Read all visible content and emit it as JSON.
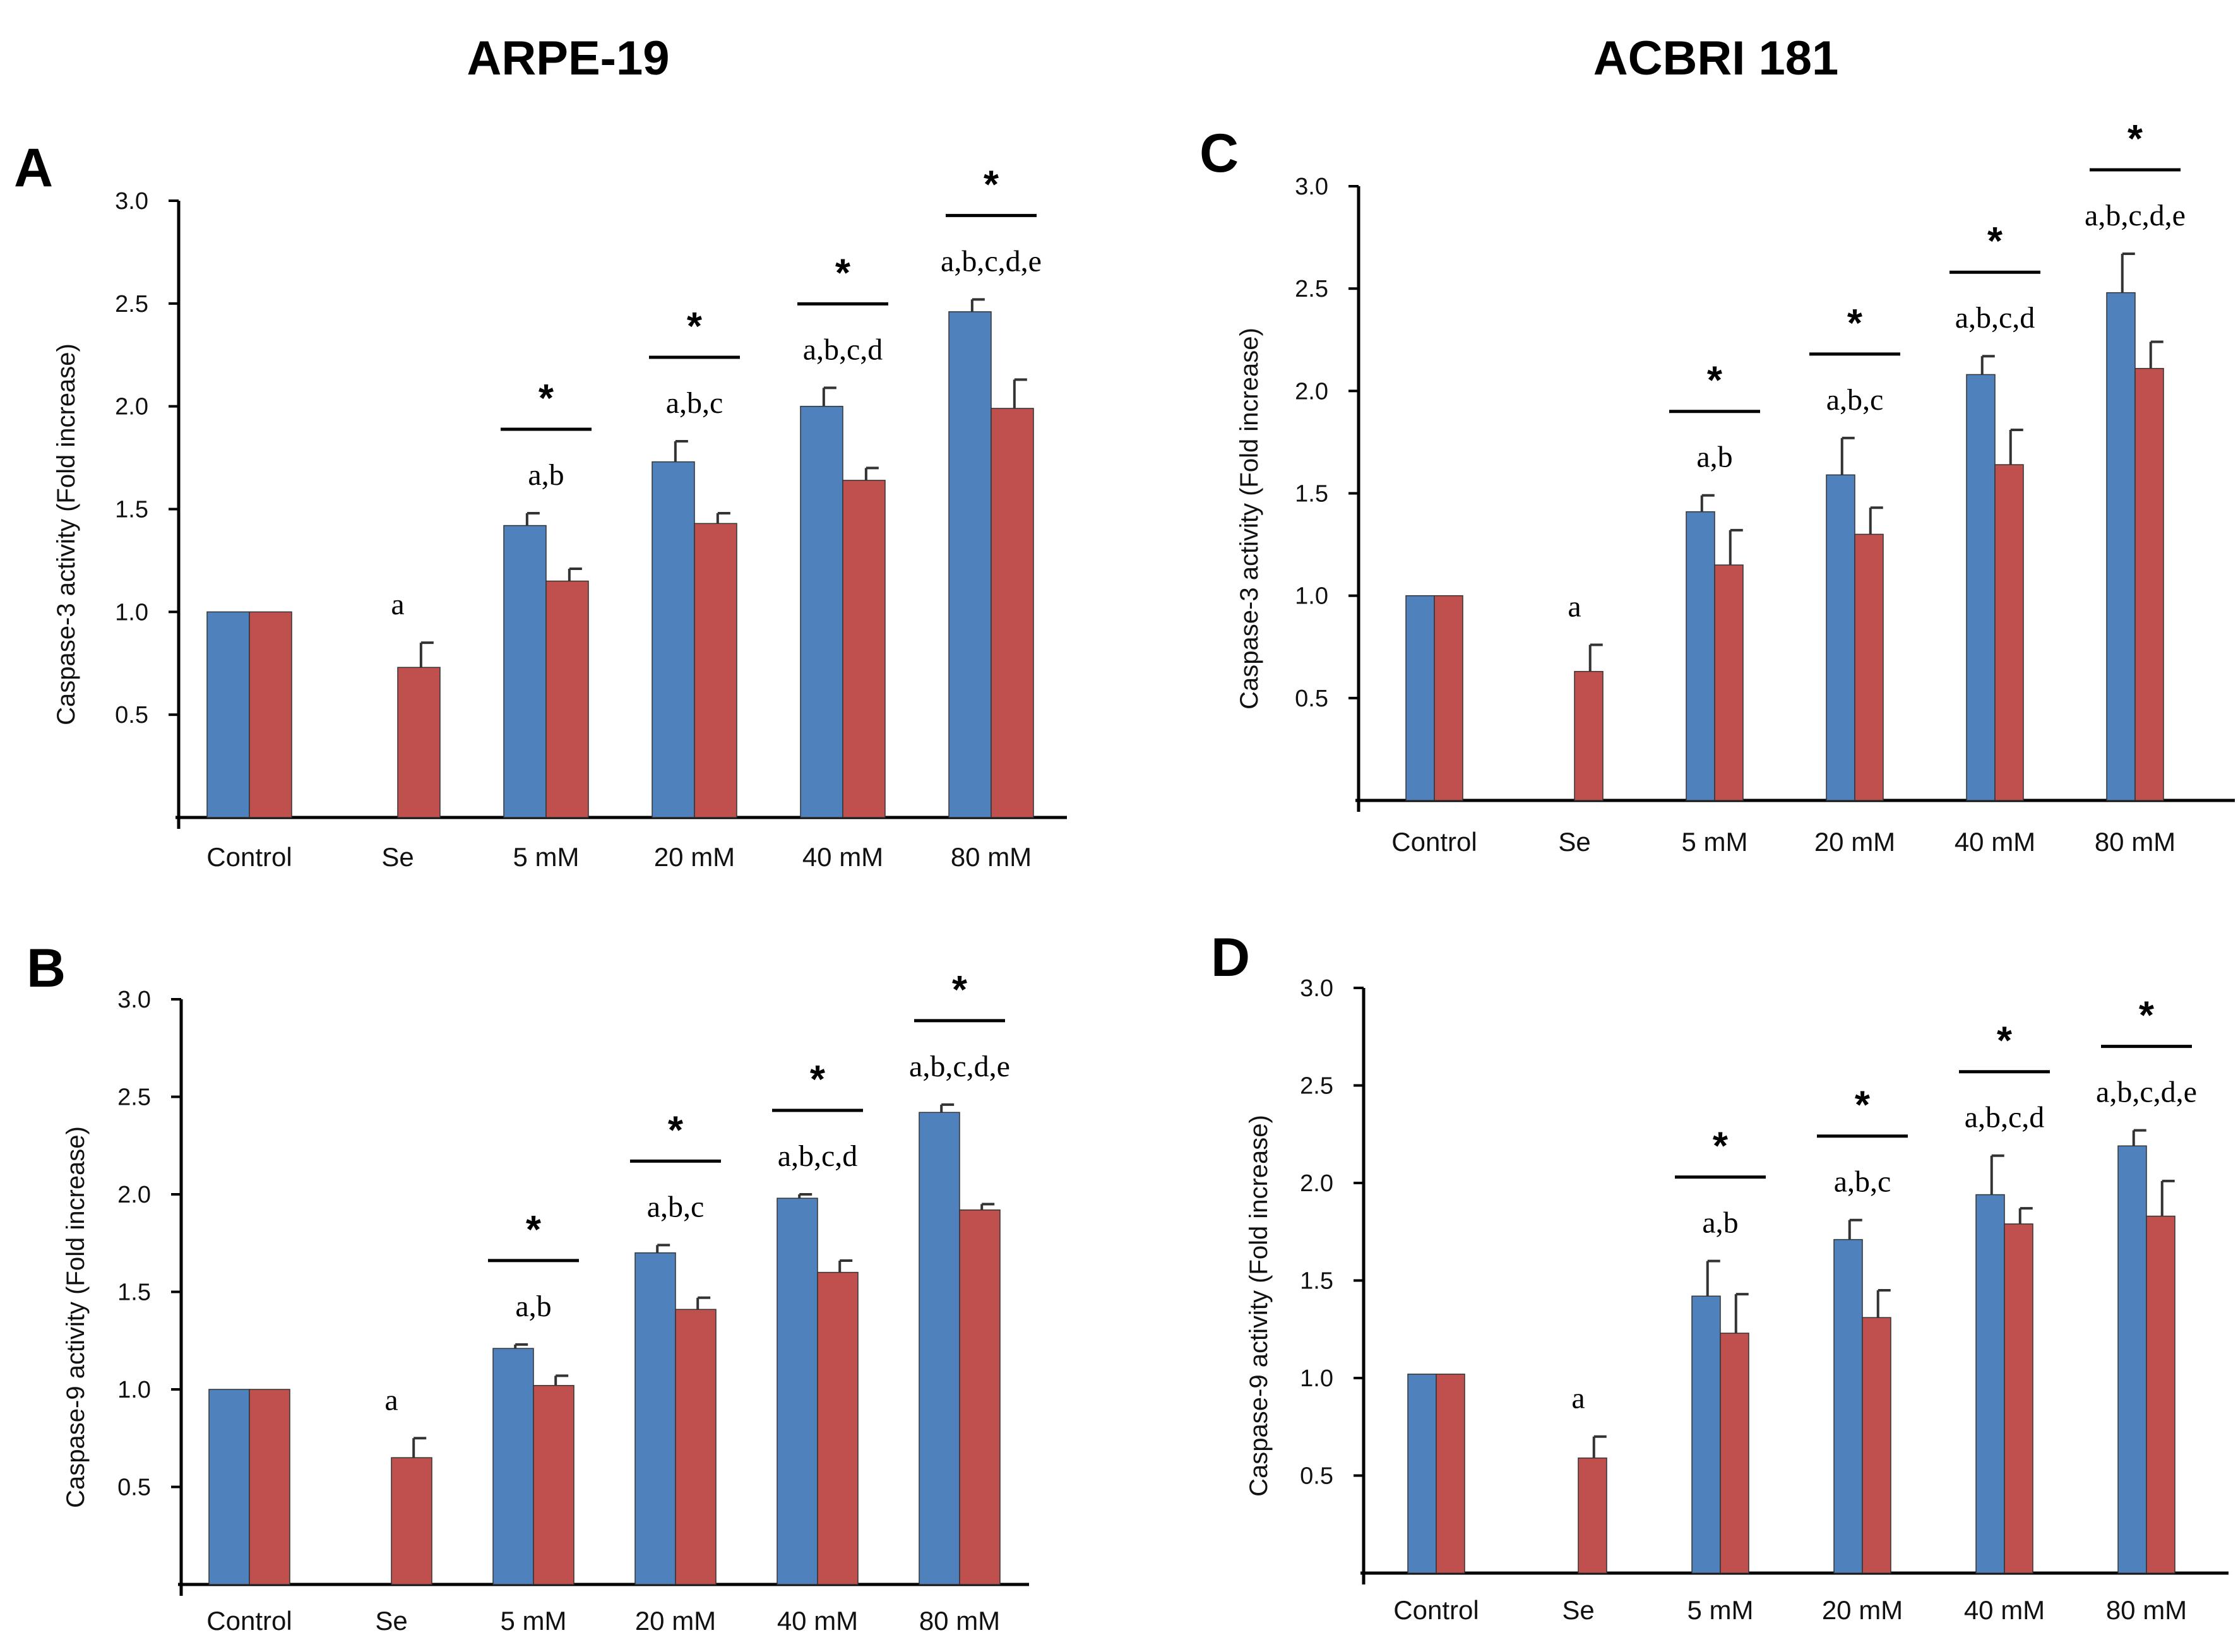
{
  "figure": {
    "col_titles": [
      "ARPE-19",
      "ACBRI 181"
    ],
    "colors": {
      "blue": "#4f81bd",
      "red": "#c0504d",
      "axis": "#000000"
    }
  },
  "chart_data": [
    {
      "type": "bar",
      "panel": "A",
      "ylabel": "Caspase-3 activity (Fold increase)",
      "ylim": [
        0,
        3.0
      ],
      "yticks": [
        "0.5",
        "1.0",
        "1.5",
        "2.0",
        "2.5",
        "3.0"
      ],
      "categories": [
        "Control",
        "Se",
        "5 mM",
        "20 mM",
        "40 mM",
        "80 mM"
      ],
      "series": [
        {
          "name": "blue",
          "values": [
            1.0,
            null,
            1.42,
            1.73,
            2.0,
            2.46
          ],
          "errors": [
            0,
            0,
            0.06,
            0.1,
            0.09,
            0.06
          ]
        },
        {
          "name": "red",
          "values": [
            1.0,
            0.73,
            1.15,
            1.43,
            1.64,
            1.99
          ],
          "errors": [
            0,
            0.12,
            0.06,
            0.05,
            0.06,
            0.14
          ]
        }
      ],
      "letters": [
        "",
        "a",
        "a,b",
        "a,b,c",
        "a,b,c,d",
        "a,b,c,d,e"
      ],
      "stars": [
        "",
        "",
        "*",
        "*",
        "*",
        "*"
      ]
    },
    {
      "type": "bar",
      "panel": "B",
      "ylabel": "Caspase-9 activity (Fold increase)",
      "ylim": [
        0,
        3.0
      ],
      "yticks": [
        "0.5",
        "1.0",
        "1.5",
        "2.0",
        "2.5",
        "3.0"
      ],
      "categories": [
        "Control",
        "Se",
        "5 mM",
        "20 mM",
        "40 mM",
        "80 mM"
      ],
      "series": [
        {
          "name": "blue",
          "values": [
            1.0,
            null,
            1.21,
            1.7,
            1.98,
            2.42
          ],
          "errors": [
            0,
            0,
            0.02,
            0.04,
            0.02,
            0.04
          ]
        },
        {
          "name": "red",
          "values": [
            1.0,
            0.65,
            1.02,
            1.41,
            1.6,
            1.92
          ],
          "errors": [
            0,
            0.1,
            0.05,
            0.06,
            0.06,
            0.03
          ]
        }
      ],
      "letters": [
        "",
        "a",
        "a,b",
        "a,b,c",
        "a,b,c,d",
        "a,b,c,d,e"
      ],
      "stars": [
        "",
        "",
        "*",
        "*",
        "*",
        "*"
      ]
    },
    {
      "type": "bar",
      "panel": "C",
      "ylabel": "Caspase-3 activity (Fold increase)",
      "ylim": [
        0,
        3.0
      ],
      "yticks": [
        "0.5",
        "1.0",
        "1.5",
        "2.0",
        "2.5",
        "3.0"
      ],
      "categories": [
        "Control",
        "Se",
        "5 mM",
        "20 mM",
        "40 mM",
        "80 mM"
      ],
      "series": [
        {
          "name": "blue",
          "values": [
            1.0,
            null,
            1.41,
            1.59,
            2.08,
            2.48
          ],
          "errors": [
            0,
            0,
            0.08,
            0.18,
            0.09,
            0.19
          ]
        },
        {
          "name": "red",
          "values": [
            1.0,
            0.63,
            1.15,
            1.3,
            1.64,
            2.11
          ],
          "errors": [
            0,
            0.13,
            0.17,
            0.13,
            0.17,
            0.13
          ]
        }
      ],
      "letters": [
        "",
        "a",
        "a,b",
        "a,b,c",
        "a,b,c,d",
        "a,b,c,d,e"
      ],
      "stars": [
        "",
        "",
        "*",
        "*",
        "*",
        "*"
      ]
    },
    {
      "type": "bar",
      "panel": "D",
      "ylabel": "Caspase-9 activity (Fold increase)",
      "ylim": [
        0,
        3.0
      ],
      "yticks": [
        "0.5",
        "1.0",
        "1.5",
        "2.0",
        "2.5",
        "3.0"
      ],
      "categories": [
        "Control",
        "Se",
        "5 mM",
        "20 mM",
        "40 mM",
        "80 mM"
      ],
      "series": [
        {
          "name": "blue",
          "values": [
            1.02,
            null,
            1.42,
            1.71,
            1.94,
            2.19
          ],
          "errors": [
            0,
            0,
            0.18,
            0.1,
            0.2,
            0.08
          ]
        },
        {
          "name": "red",
          "values": [
            1.02,
            0.59,
            1.23,
            1.31,
            1.79,
            1.83
          ],
          "errors": [
            0,
            0.11,
            0.2,
            0.14,
            0.08,
            0.18
          ]
        }
      ],
      "letters": [
        "",
        "a",
        "a,b",
        "a,b,c",
        "a,b,c,d",
        "a,b,c,d,e"
      ],
      "stars": [
        "",
        "",
        "*",
        "*",
        "*",
        "*"
      ]
    }
  ]
}
